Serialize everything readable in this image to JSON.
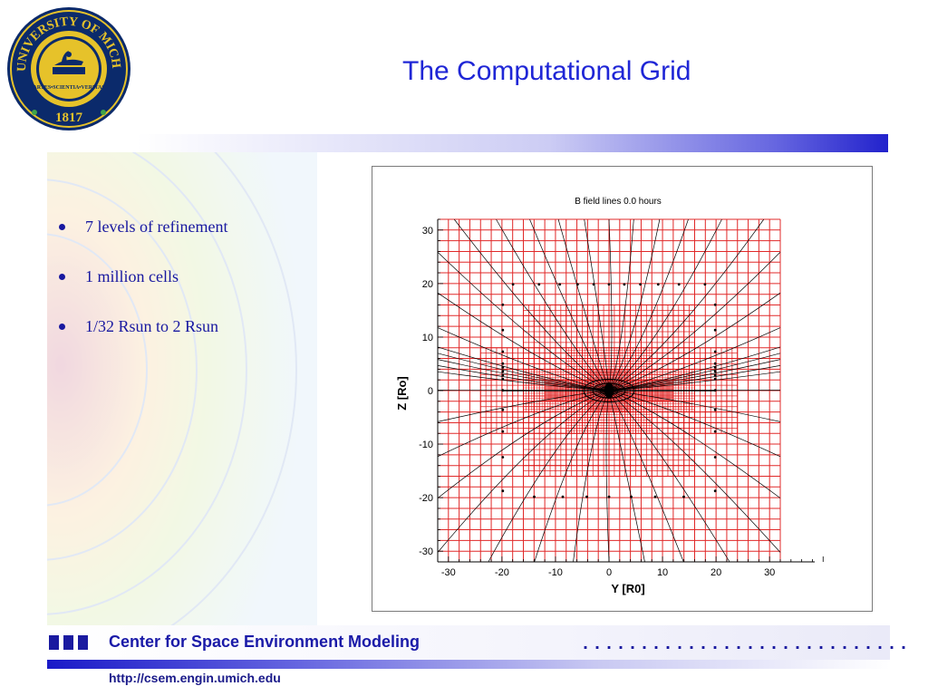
{
  "logo": {
    "name": "university-of-michigan-seal",
    "text_top": "THE UNIVERSITY OF MICHIGAN",
    "motto": "ARTES•SCIENTIA•VERITAS",
    "year": "1817",
    "colors": {
      "navy": "#0b2a6b",
      "maize": "#e6c22a"
    }
  },
  "title": "The Computational Grid",
  "bullets": [
    "7 levels of refinement",
    "1 million cells",
    "1/32 Rsun to 2 Rsun"
  ],
  "chart_data": {
    "type": "grid-plot",
    "title": "B field lines   0.0 hours",
    "xlabel": "Y [R0]",
    "ylabel": "Z [Ro]",
    "xlim": [
      -32,
      32
    ],
    "ylim": [
      -32,
      32
    ],
    "xticks": [
      "-30",
      "-20",
      "-10",
      "0",
      "10",
      "20",
      "30"
    ],
    "yticks": [
      "30",
      "20",
      "10",
      "0",
      "-10",
      "-20",
      "-30"
    ],
    "grid_color": "#dd1111",
    "line_color": "#000000",
    "refinement_blocks": [
      {
        "y": [
          -32,
          32
        ],
        "z": [
          -32,
          32
        ],
        "cell": 2
      },
      {
        "y": [
          -16,
          16
        ],
        "z": [
          -16,
          16
        ],
        "cell": 1
      },
      {
        "y": [
          -24,
          24
        ],
        "z": [
          -8,
          8
        ],
        "cell": 1
      },
      {
        "y": [
          -8,
          8
        ],
        "z": [
          -8,
          8
        ],
        "cell": 0.5
      },
      {
        "y": [
          -16,
          16
        ],
        "z": [
          -4,
          4
        ],
        "cell": 0.5
      },
      {
        "y": [
          -12,
          12
        ],
        "z": [
          -2,
          2
        ],
        "cell": 0.25
      },
      {
        "y": [
          -4,
          4
        ],
        "z": [
          -4,
          4
        ],
        "cell": 0.25
      }
    ]
  },
  "footer": {
    "organization": "Center for Space Environment Modeling",
    "url": "http://csem.engin.umich.edu",
    "dots": "............................",
    "accent": "#1a1aa8"
  }
}
